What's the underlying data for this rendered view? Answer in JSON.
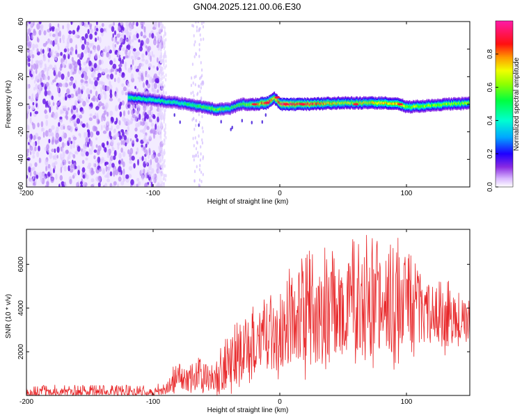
{
  "title": "GN04.2025.121.00.06.E30",
  "colors": {
    "snr_line": "#e8282a",
    "spectrogram_background_noise": "#b98cf5",
    "spectrogram_strong_noise": "#6a1ce8",
    "colormap": [
      "#ffffff",
      "#e6d6ff",
      "#a875ff",
      "#6a1ce8",
      "#1f00ff",
      "#0066ff",
      "#00d6ff",
      "#00ff7a",
      "#7aff00",
      "#f0ff00",
      "#ffa000",
      "#ff1010",
      "#ff1aa8"
    ]
  },
  "chart_data": [
    {
      "type": "heatmap",
      "title": "GN04.2025.121.00.06.E30",
      "xlabel": "Height of straight line (km)",
      "ylabel": "Frequency (Hz)",
      "xlim": [
        -200,
        150
      ],
      "ylim": [
        -60,
        60
      ],
      "x_ticks": [
        "-200",
        "-100",
        "0",
        "100"
      ],
      "x_tick_values": [
        -200,
        -100,
        0,
        100
      ],
      "y_ticks": [
        "-60",
        "-40",
        "-20",
        "0",
        "20",
        "40",
        "60"
      ],
      "y_tick_values": [
        -60,
        -40,
        -20,
        0,
        20,
        40,
        60
      ],
      "colorbar": {
        "label": "Normalized spectral amplitude",
        "range": [
          0,
          1
        ],
        "ticks": [
          "0.0",
          "0.2",
          "0.4",
          "0.6",
          "0.8"
        ],
        "tick_values": [
          0,
          0.2,
          0.4,
          0.6,
          0.8
        ]
      },
      "features": {
        "broadband_noise_x_range": [
          -200,
          -93
        ],
        "sparse_noise_column_x": [
          -70,
          -60
        ],
        "signal_band": {
          "x": [
            -120,
            -100,
            -80,
            -60,
            -50,
            -40,
            -30,
            -20,
            -10,
            -5,
            0,
            20,
            50,
            80,
            95,
            100,
            150
          ],
          "freq_hz": [
            5,
            3,
            1,
            -2,
            -4,
            -3,
            0,
            0,
            1,
            5,
            0,
            0,
            1,
            1,
            0,
            -2,
            1
          ],
          "peak_amplitude": [
            0.5,
            0.45,
            0.45,
            0.55,
            0.6,
            0.5,
            0.55,
            0.65,
            0.95,
            0.7,
            0.95,
            0.85,
            0.65,
            0.7,
            0.75,
            0.6,
            0.6
          ]
        }
      }
    },
    {
      "type": "line",
      "xlabel": "Height of straight line (km)",
      "ylabel": "SNR (10 * v/v)",
      "xlim": [
        -200,
        150
      ],
      "ylim": [
        0,
        7600
      ],
      "x_ticks": [
        "-200",
        "-100",
        "0",
        "100"
      ],
      "x_tick_values": [
        -200,
        -100,
        0,
        100
      ],
      "y_ticks": [
        "2000",
        "4000",
        "6000"
      ],
      "y_tick_values": [
        2000,
        4000,
        6000
      ],
      "series": [
        {
          "x": [
            -200,
            -180,
            -160,
            -140,
            -120,
            -100,
            -90,
            -85,
            -80,
            -75,
            -70,
            -65,
            -60,
            -55,
            -50,
            -45,
            -40,
            -35,
            -30,
            -25,
            -20,
            -15,
            -10,
            -5,
            0,
            5,
            10,
            15,
            20,
            25,
            30,
            35,
            40,
            45,
            50,
            55,
            60,
            65,
            70,
            75,
            80,
            85,
            90,
            95,
            100,
            105,
            110,
            115,
            120,
            125,
            130,
            135,
            140,
            145,
            150
          ],
          "y": [
            150,
            150,
            160,
            150,
            160,
            170,
            250,
            600,
            800,
            900,
            700,
            1000,
            600,
            500,
            900,
            1100,
            1300,
            1500,
            1800,
            2200,
            2500,
            2700,
            2900,
            3000,
            2900,
            3000,
            3200,
            3200,
            3400,
            3500,
            3700,
            3900,
            3900,
            3800,
            4100,
            4000,
            4000,
            4200,
            4300,
            4000,
            4100,
            4000,
            4100,
            4200,
            4100,
            4000,
            3800,
            3700,
            3600,
            3600,
            3500,
            3400,
            3300,
            3400,
            3300
          ],
          "peak_envelope": [
            450,
            500,
            480,
            470,
            480,
            500,
            600,
            1300,
            1500,
            1600,
            1400,
            1800,
            1500,
            1300,
            1900,
            2400,
            2900,
            3300,
            3700,
            4200,
            4500,
            4300,
            4800,
            6100,
            5400,
            5600,
            6000,
            6300,
            6500,
            6700,
            6900,
            7000,
            6800,
            7100,
            6800,
            7100,
            7200,
            7600,
            7600,
            7200,
            7000,
            7100,
            7600,
            7200,
            6400,
            6600,
            6000,
            5400,
            5400,
            5200,
            5500,
            5200,
            4800,
            4900,
            4700
          ]
        }
      ]
    }
  ]
}
